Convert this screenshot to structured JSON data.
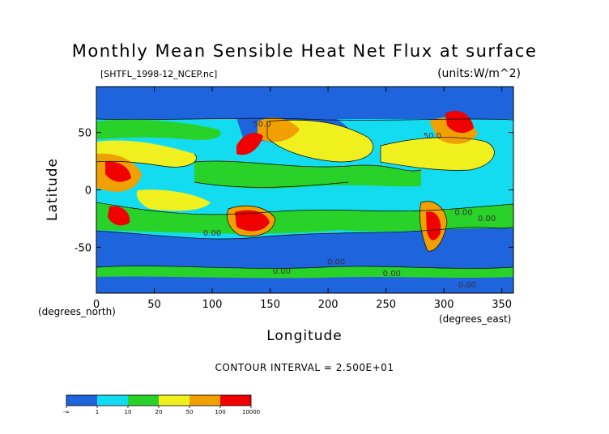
{
  "chart_data": {
    "type": "heatmap",
    "title": "Monthly Mean Sensible Heat Net Flux at surface",
    "file_label": "[SHTFL_1998-12_NCEP.nc]",
    "units_label": "(units:W/m^2)",
    "xlabel": "Longitude",
    "ylabel": "Latitude",
    "x_unit_label": "(degrees_east)",
    "y_unit_label": "(degrees_north)",
    "xlim": [
      0,
      360
    ],
    "ylim": [
      -90,
      90
    ],
    "x_ticks": [
      0,
      50,
      100,
      150,
      200,
      250,
      300,
      350
    ],
    "y_ticks": [
      50,
      0,
      -50
    ],
    "contour_interval": "CONTOUR INTERVAL = 2.500E+01",
    "contour_labels": [
      {
        "text": "50.0",
        "x": 143,
        "y": 55
      },
      {
        "text": "0.00",
        "x": 100,
        "y": -40
      },
      {
        "text": "0.00",
        "x": 160,
        "y": -73
      },
      {
        "text": "0.00",
        "x": 207,
        "y": -65
      },
      {
        "text": "0.00",
        "x": 255,
        "y": -75
      },
      {
        "text": "0.00",
        "x": 320,
        "y": -85
      },
      {
        "text": "0.00",
        "x": 337,
        "y": -27
      },
      {
        "text": "0.00",
        "x": 317,
        "y": -22
      },
      {
        "text": "50.0",
        "x": 290,
        "y": 45
      }
    ],
    "colorbar": {
      "colors": [
        "#1e64dc",
        "#1e64dc",
        "#14dcf0",
        "#14dcf0",
        "#28d228",
        "#28d228",
        "#f0f01e",
        "#f0f01e",
        "#f0a000",
        "#f0a000",
        "#f00000",
        "#f00000"
      ],
      "tick_labels": [
        "-∞",
        "1",
        "10",
        "20",
        "50",
        "100",
        "10000"
      ]
    }
  }
}
